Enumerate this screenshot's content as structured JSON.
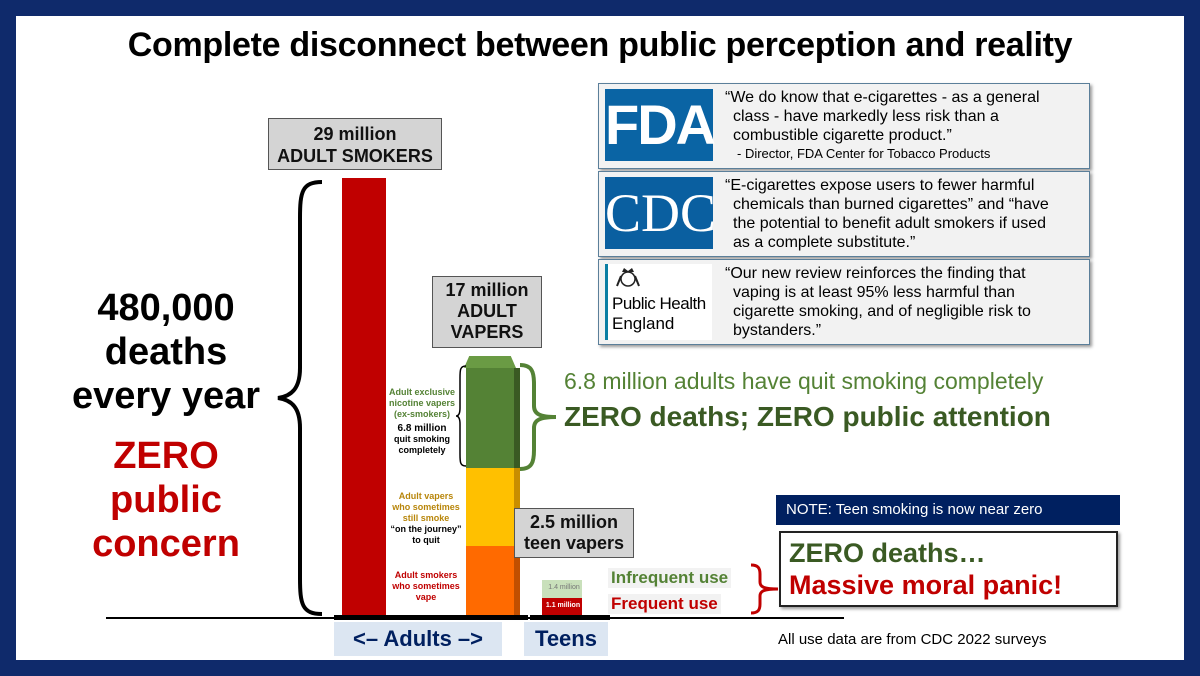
{
  "title": "Complete disconnect between public perception and reality",
  "smokers_box": {
    "line1": "29 million",
    "line2": "ADULT SMOKERS"
  },
  "vapers_box": {
    "line1": "17 million",
    "line2": "ADULT",
    "line3": "VAPERS"
  },
  "teen_box": {
    "line1": "2.5 million",
    "line2": "teen vapers"
  },
  "deaths": {
    "line1": "480,000",
    "line2": "deaths",
    "line3": "every year"
  },
  "concern": {
    "line1": "ZERO",
    "line2": "public",
    "line3": "concern"
  },
  "vaper_segments": {
    "green": {
      "l1": "Adult exclusive",
      "l2": "nicotine vapers",
      "l3": "(ex-smokers)",
      "l4": "6.8 million",
      "l5": "quit smoking",
      "l6": "completely"
    },
    "yellow": {
      "l1": "Adult vapers",
      "l2": "who sometimes",
      "l3": "still smoke",
      "l4": "“on the journey”",
      "l5": "to quit"
    },
    "orange": {
      "l1": "Adult smokers",
      "l2": "who sometimes",
      "l3": "vape"
    }
  },
  "quit_text": {
    "line1": "6.8 million adults have quit smoking completely",
    "line2": "ZERO deaths; ZERO public attention"
  },
  "teen_bars": {
    "infrequent_value": "1.4 million",
    "frequent_value": "1.1 million",
    "infrequent_label": "Infrequent use",
    "frequent_label": "Frequent use"
  },
  "note": "NOTE:  Teen smoking is now near zero",
  "panic": {
    "line1": "ZERO deaths…",
    "line2": "Massive moral panic!"
  },
  "axis": {
    "adults": "<– Adults –>",
    "teens": "Teens"
  },
  "source": "All use data are from CDC 2022 surveys",
  "quotes": {
    "fda": {
      "logo": "FDA",
      "l1": "“We do know that e-cigarettes - as a general",
      "l2": "class - have markedly less risk than a",
      "l3": "combustible cigarette product.”",
      "attribution": "- Director, FDA Center for Tobacco Products"
    },
    "cdc": {
      "logo": "CDC",
      "l1": "“E-cigarettes expose users to fewer harmful",
      "l2": "chemicals than burned cigarettes” and “have",
      "l3": "the potential to benefit adult smokers if used",
      "l4": "as a complete substitute.”"
    },
    "phe": {
      "logo_l1": "Public Health",
      "logo_l2": "England",
      "l1": "“Our new review reinforces the finding that",
      "l2": "vaping is at least 95% less harmful than",
      "l3": "cigarette smoking, and of negligible risk to",
      "l4": "bystanders.”"
    }
  },
  "colors": {
    "frame": "#0f2a6b",
    "red": "#c00000",
    "green": "#548235",
    "dark_green": "#3a5a23",
    "yellow": "#ffc000",
    "orange": "#ff6a00",
    "navy": "#002060",
    "fda_blue": "#0a64a4",
    "cdc_blue": "#0a5fa0"
  }
}
